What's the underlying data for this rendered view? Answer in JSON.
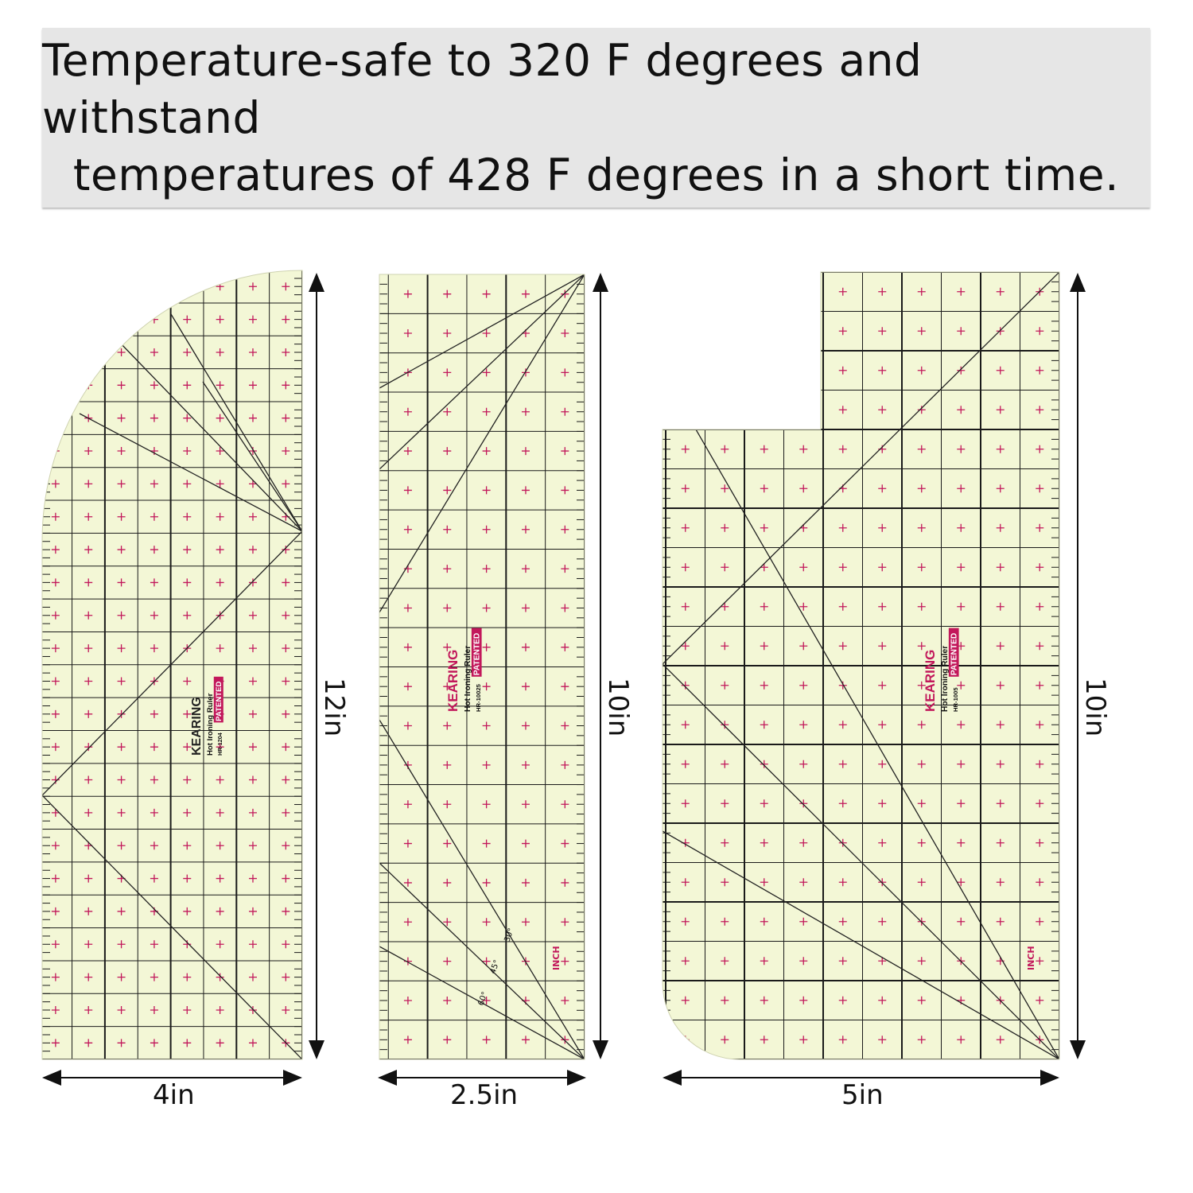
{
  "header": {
    "line1": "Temperature-safe to 320 F degrees and withstand",
    "line2": "temperatures of 428 F degrees in a short time."
  },
  "colors": {
    "ruler_fill": "#f3f7d6",
    "grid_line": "#1a1a1a",
    "accent_red": "#c2185b",
    "banner_bg": "#e6e6e6"
  },
  "rulers": [
    {
      "brand": "KEARING",
      "product": "Hot Ironing Ruler",
      "model": "HR-1204",
      "badge": "PATENTED",
      "width_label": "4in",
      "height_label": "12in"
    },
    {
      "brand": "KEARING",
      "product": "Hot Ironing Ruler",
      "model": "HR-10025",
      "badge": "PATENTED",
      "width_label": "2.5in",
      "height_label": "10in",
      "unit": "INCH"
    },
    {
      "brand": "KEARING",
      "product": "Hot Ironing Ruler",
      "model": "HR-1005",
      "badge": "PATENTED",
      "width_label": "5in",
      "height_label": "10in",
      "unit": "INCH"
    }
  ],
  "angles": [
    "30°",
    "45°",
    "60°"
  ]
}
